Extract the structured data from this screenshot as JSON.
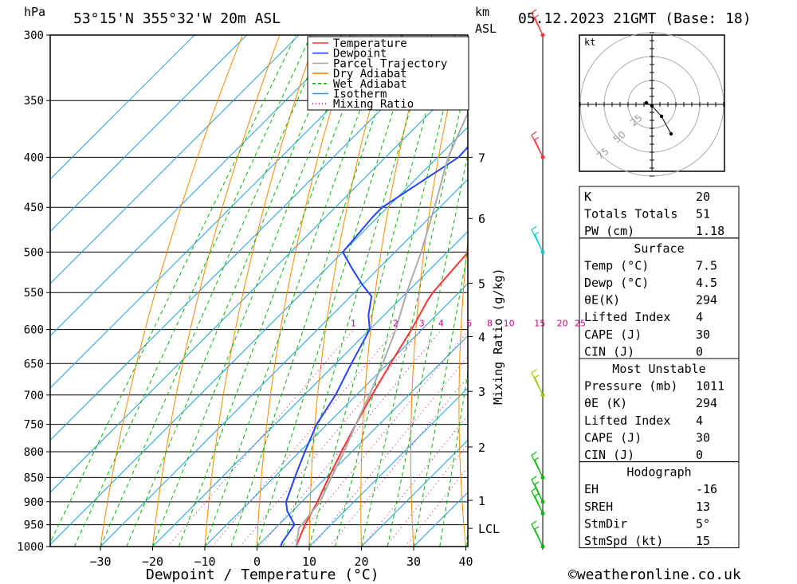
{
  "header": {
    "hpa": "hPa",
    "location": "53°15'N 355°32'W 20m ASL",
    "km": "km",
    "asl": "ASL",
    "date": "05.12.2023 21GMT (Base: 18)"
  },
  "footer": {
    "xlabel": "Dewpoint / Temperature (°C)",
    "mixing_label": "Mixing Ratio (g/kg)",
    "credit": "©weatheronline.co.uk"
  },
  "chart_data": {
    "type": "line",
    "title": "53°15'N 355°32'W 20m ASL",
    "xlabel": "Dewpoint / Temperature (°C)",
    "ylabel": "hPa",
    "xlim": [
      -40,
      40
    ],
    "ylim": [
      1000,
      300
    ],
    "x_ticks": [
      -30,
      -20,
      -10,
      0,
      10,
      20,
      30,
      40
    ],
    "pressure_ticks": [
      300,
      350,
      400,
      450,
      500,
      550,
      600,
      650,
      700,
      750,
      800,
      850,
      900,
      950,
      1000
    ],
    "km_ticks": [
      {
        "label": "7",
        "p": 400
      },
      {
        "label": "6",
        "p": 462
      },
      {
        "label": "5",
        "p": 538
      },
      {
        "label": "4",
        "p": 610
      },
      {
        "label": "3",
        "p": 694
      },
      {
        "label": "2",
        "p": 791
      },
      {
        "label": "1",
        "p": 897
      },
      {
        "label": "LCL",
        "p": 958
      }
    ],
    "mixing_ratio_labels": [
      "1",
      "2",
      "3",
      "4",
      "6",
      "8",
      "10",
      "15",
      "20",
      "25"
    ],
    "legend": [
      {
        "name": "Temperature",
        "color": "#ff3333",
        "style": "solid"
      },
      {
        "name": "Dewpoint",
        "color": "#2244ff",
        "style": "solid"
      },
      {
        "name": "Parcel Trajectory",
        "color": "#aaaaaa",
        "style": "solid"
      },
      {
        "name": "Dry Adiabat",
        "color": "#ff8800",
        "style": "solid"
      },
      {
        "name": "Wet Adiabat",
        "color": "#00bb00",
        "style": "dashed"
      },
      {
        "name": "Isotherm",
        "color": "#1ea0e6",
        "style": "solid"
      },
      {
        "name": "Mixing Ratio",
        "color": "#cc0088",
        "style": "dotted"
      }
    ],
    "series": [
      {
        "name": "Temperature",
        "color": "#ff3333",
        "points": [
          [
            7.5,
            1000
          ],
          [
            5,
            950
          ],
          [
            3,
            900
          ],
          [
            0.5,
            850
          ],
          [
            -2,
            800
          ],
          [
            -4.5,
            750
          ],
          [
            -7,
            700
          ],
          [
            -9.5,
            650
          ],
          [
            -12,
            600
          ],
          [
            -14.5,
            560
          ],
          [
            -15,
            550
          ],
          [
            -16,
            500
          ],
          [
            -17.5,
            450
          ],
          [
            -19,
            420
          ],
          [
            -20,
            400
          ],
          [
            -23,
            350
          ],
          [
            -26,
            300
          ]
        ]
      },
      {
        "name": "Dewpoint",
        "color": "#2244ff",
        "points": [
          [
            4.5,
            1000
          ],
          [
            4,
            990
          ],
          [
            3,
            950
          ],
          [
            -1,
            920
          ],
          [
            -3,
            900
          ],
          [
            -6,
            850
          ],
          [
            -9,
            800
          ],
          [
            -12,
            750
          ],
          [
            -14,
            700
          ],
          [
            -17,
            650
          ],
          [
            -20,
            600
          ],
          [
            -23,
            580
          ],
          [
            -26,
            555
          ],
          [
            -30,
            540
          ],
          [
            -35,
            520
          ],
          [
            -40,
            500
          ],
          [
            -41,
            460
          ],
          [
            -41,
            450
          ],
          [
            -36,
            400
          ],
          [
            -37,
            350
          ],
          [
            -39,
            300
          ]
        ]
      },
      {
        "name": "Parcel Trajectory",
        "color": "#aaaaaa",
        "points": [
          [
            7.5,
            1000
          ],
          [
            4.5,
            958
          ],
          [
            3.5,
            900
          ],
          [
            1,
            850
          ],
          [
            -1.5,
            800
          ],
          [
            -4.5,
            750
          ],
          [
            -7.5,
            700
          ],
          [
            -11,
            650
          ],
          [
            -15,
            600
          ],
          [
            -20,
            550
          ],
          [
            -25,
            500
          ],
          [
            -31,
            450
          ],
          [
            -38,
            400
          ],
          [
            -44,
            350
          ]
        ]
      }
    ],
    "wind_barbs": [
      {
        "p": 300,
        "color": "#ff3333"
      },
      {
        "p": 400,
        "color": "#ff3333"
      },
      {
        "p": 500,
        "color": "#00cccc"
      },
      {
        "p": 700,
        "color": "#99cc00"
      },
      {
        "p": 850,
        "color": "#00bb00"
      },
      {
        "p": 900,
        "color": "#00bb00"
      },
      {
        "p": 925,
        "color": "#00bb00"
      },
      {
        "p": 1000,
        "color": "#00bb00"
      }
    ],
    "hodograph": {
      "units": "kt",
      "ring_labels": [
        "25",
        "50",
        "75"
      ],
      "points": [
        [
          -0.7,
          0.2
        ],
        [
          0,
          -0.2
        ],
        [
          1.2,
          -1.5
        ],
        [
          2.4,
          -3.7
        ]
      ]
    }
  },
  "stats": [
    {
      "type": "row",
      "label": "K",
      "value": "20"
    },
    {
      "type": "row",
      "label": "Totals Totals",
      "value": "51"
    },
    {
      "type": "row",
      "label": "PW (cm)",
      "value": "1.18"
    },
    {
      "type": "header",
      "label": "Surface"
    },
    {
      "type": "row",
      "label": "Temp (°C)",
      "value": "7.5"
    },
    {
      "type": "row",
      "label": "Dewp (°C)",
      "value": "4.5"
    },
    {
      "type": "row",
      "label": "θE(K)",
      "value": "294"
    },
    {
      "type": "row",
      "label": "Lifted Index",
      "value": "4"
    },
    {
      "type": "row",
      "label": "CAPE (J)",
      "value": "30"
    },
    {
      "type": "row",
      "label": "CIN (J)",
      "value": "0"
    },
    {
      "type": "header",
      "label": "Most Unstable"
    },
    {
      "type": "row",
      "label": "Pressure (mb)",
      "value": "1011"
    },
    {
      "type": "row",
      "label": "θE (K)",
      "value": "294"
    },
    {
      "type": "row",
      "label": "Lifted Index",
      "value": "4"
    },
    {
      "type": "row",
      "label": "CAPE (J)",
      "value": "30"
    },
    {
      "type": "row",
      "label": "CIN (J)",
      "value": "0"
    },
    {
      "type": "header",
      "label": "Hodograph"
    },
    {
      "type": "row",
      "label": "EH",
      "value": "-16"
    },
    {
      "type": "row",
      "label": "SREH",
      "value": "13"
    },
    {
      "type": "row",
      "label": "StmDir",
      "value": "5°"
    },
    {
      "type": "row",
      "label": "StmSpd (kt)",
      "value": "15"
    }
  ]
}
